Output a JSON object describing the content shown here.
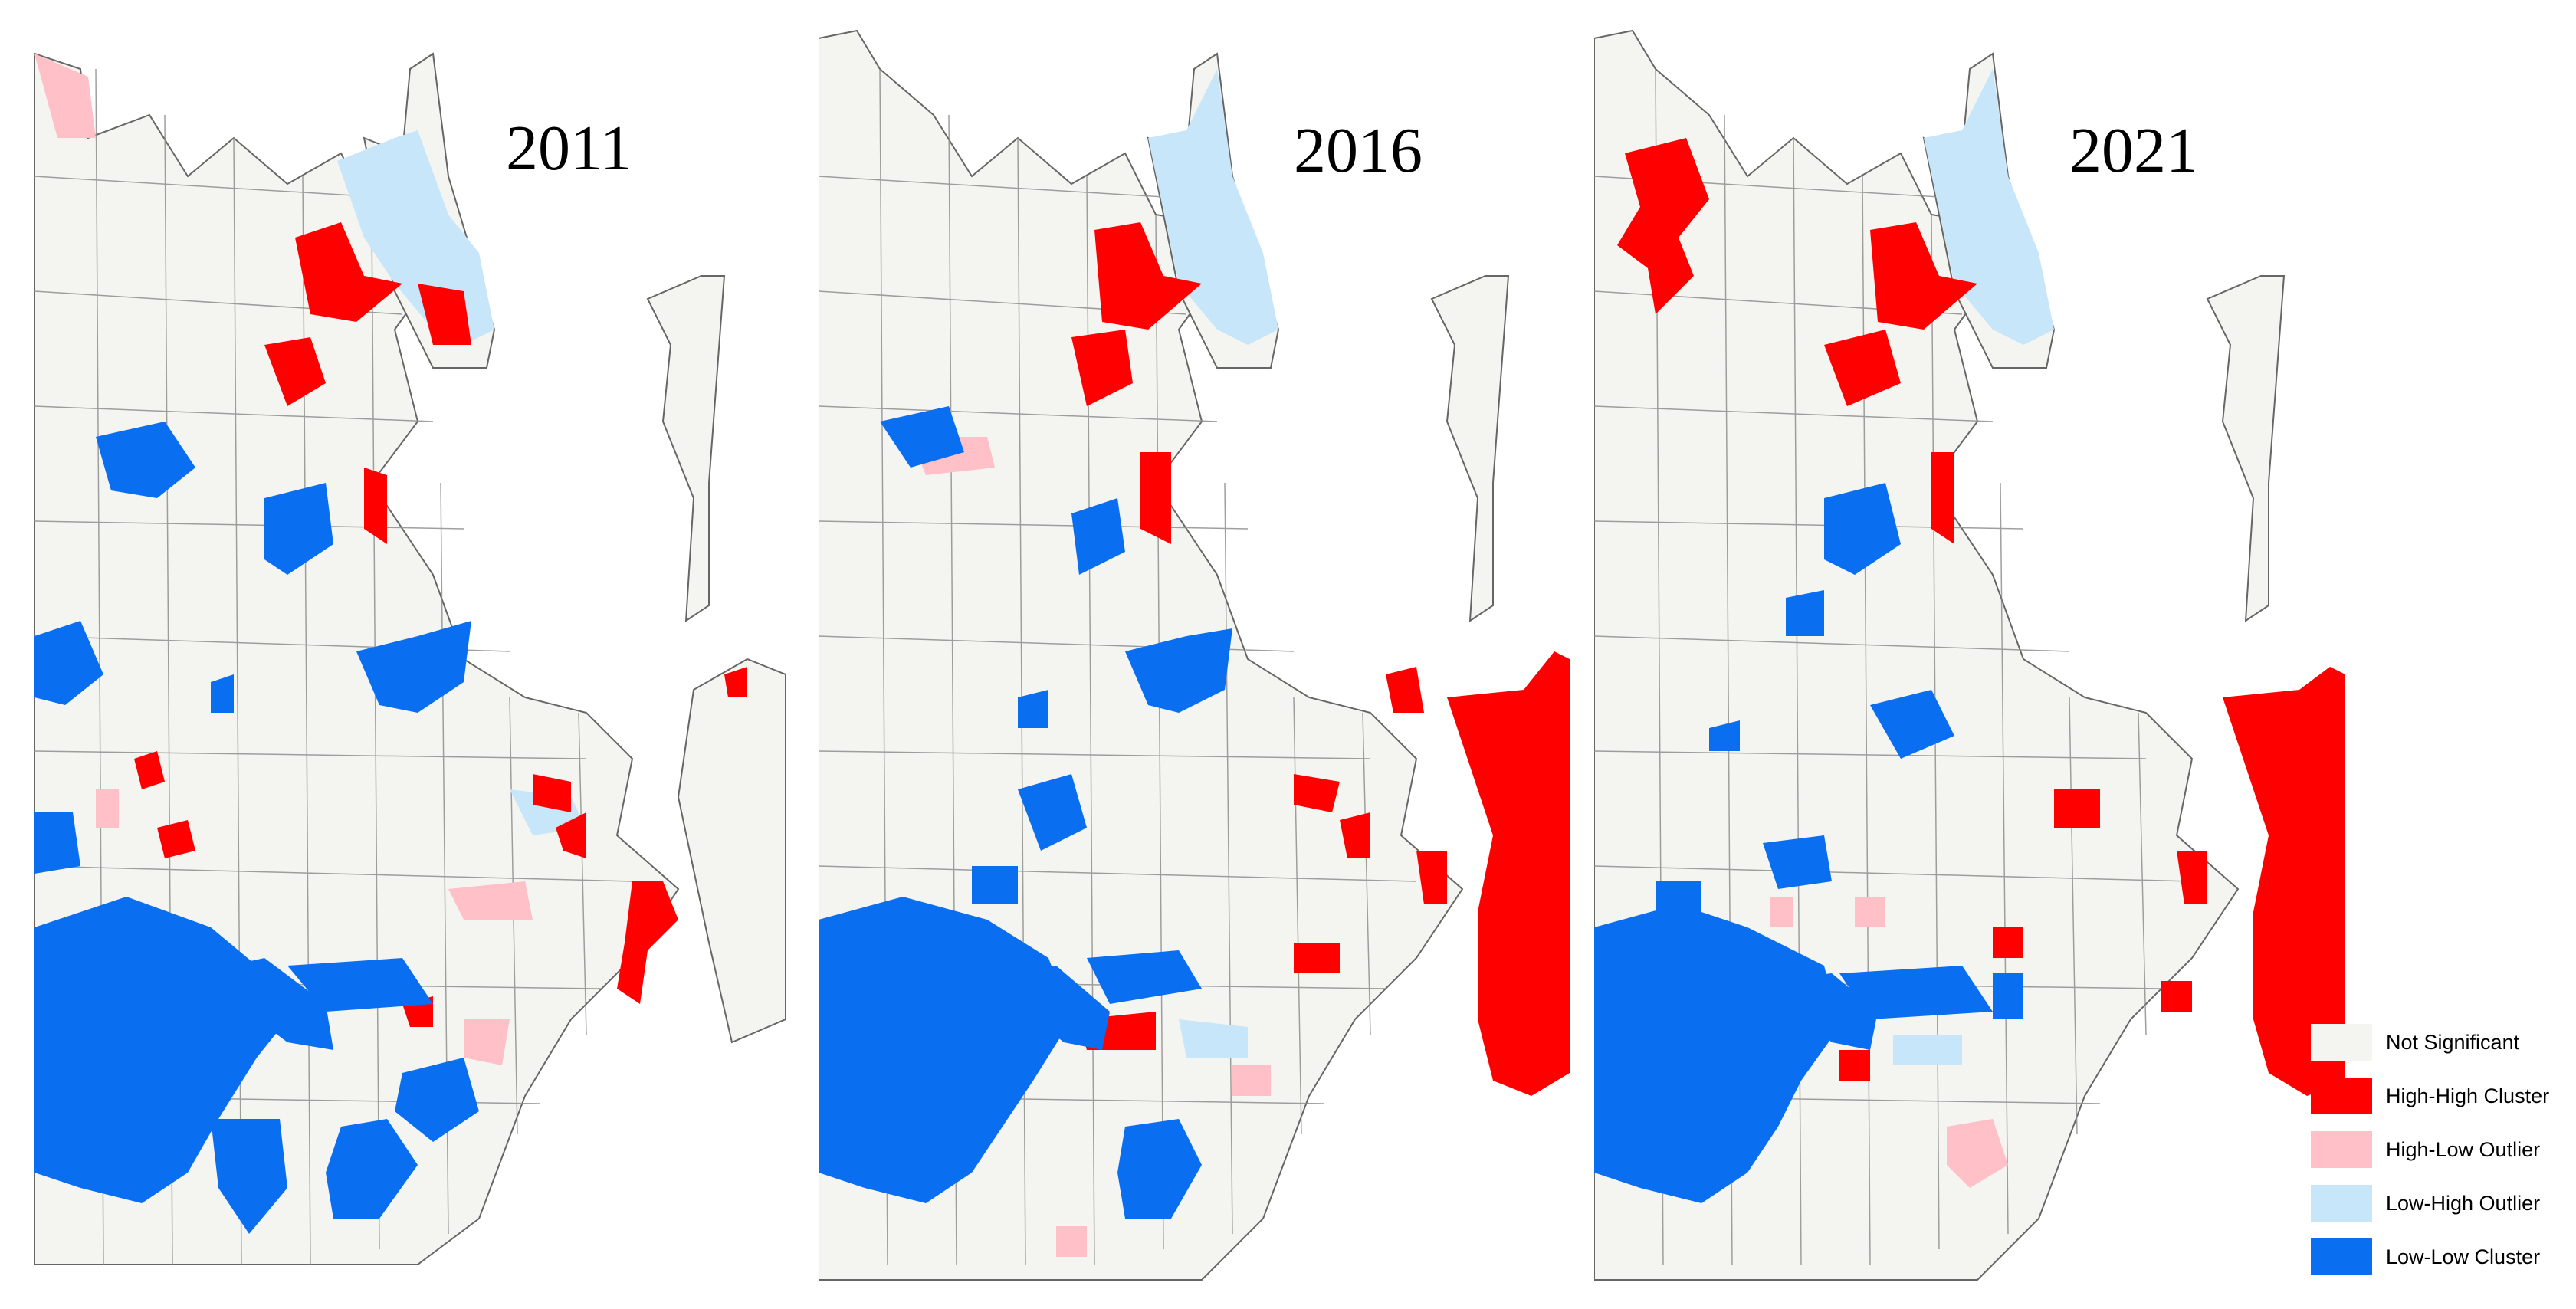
{
  "panels": [
    {
      "year": "2011"
    },
    {
      "year": "2016"
    },
    {
      "year": "2021"
    }
  ],
  "colors": {
    "not_significant": "#f4f4f0",
    "high_high": "#ff0000",
    "high_low": "#ffc0c8",
    "low_high": "#c8e6fa",
    "low_low": "#0a6ef0",
    "boundary": "#666666"
  },
  "legend": {
    "items": [
      {
        "label": "Not Significant",
        "color": "#f4f4f0"
      },
      {
        "label": "High-High Cluster",
        "color": "#ff0000"
      },
      {
        "label": "High-Low Outlier",
        "color": "#ffc0c8"
      },
      {
        "label": "Low-High Outlier",
        "color": "#c8e6fa"
      },
      {
        "label": "Low-Low Cluster",
        "color": "#0a6ef0"
      }
    ]
  }
}
